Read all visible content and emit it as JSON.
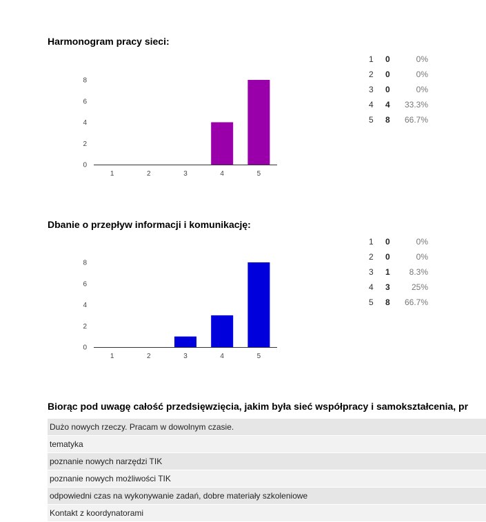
{
  "questions": [
    {
      "title": "Harmonogram pracy sieci:",
      "color": "#9900aa",
      "stats": [
        {
          "label": "1",
          "count": "0",
          "pct": "0%"
        },
        {
          "label": "2",
          "count": "0",
          "pct": "0%"
        },
        {
          "label": "3",
          "count": "0",
          "pct": "0%"
        },
        {
          "label": "4",
          "count": "4",
          "pct": "33.3%"
        },
        {
          "label": "5",
          "count": "8",
          "pct": "66.7%"
        }
      ]
    },
    {
      "title": "Dbanie o przepływ informacji i komunikację:",
      "color": "#0000dd",
      "stats": [
        {
          "label": "1",
          "count": "0",
          "pct": "0%"
        },
        {
          "label": "2",
          "count": "0",
          "pct": "0%"
        },
        {
          "label": "3",
          "count": "1",
          "pct": "8.3%"
        },
        {
          "label": "4",
          "count": "3",
          "pct": "25%"
        },
        {
          "label": "5",
          "count": "8",
          "pct": "66.7%"
        }
      ]
    }
  ],
  "chart_data": [
    {
      "type": "bar",
      "title": "Harmonogram pracy sieci:",
      "categories": [
        "1",
        "2",
        "3",
        "4",
        "5"
      ],
      "values": [
        0,
        0,
        0,
        4,
        8
      ],
      "yticks": [
        "0",
        "2",
        "4",
        "6",
        "8"
      ],
      "ylim": [
        0,
        8
      ],
      "color": "#9900aa"
    },
    {
      "type": "bar",
      "title": "Dbanie o przepływ informacji i komunikację:",
      "categories": [
        "1",
        "2",
        "3",
        "4",
        "5"
      ],
      "values": [
        0,
        0,
        1,
        3,
        8
      ],
      "yticks": [
        "0",
        "2",
        "4",
        "6",
        "8"
      ],
      "ylim": [
        0,
        8
      ],
      "color": "#0000dd"
    }
  ],
  "open_question": {
    "title": "Biorąc pod uwagę całość przedsięwzięcia, jakim była sieć współpracy i samokształcenia, pr",
    "answers": [
      "Dużo nowych rzeczy. Pracam w dowolnym czasie.",
      "tematyka",
      "poznanie nowych narzędzi TIK",
      "poznanie nowych możliwości TIK",
      "odpowiedni czas na wykonywanie zadań, dobre materiały szkoleniowe",
      "Kontakt z koordynatorami"
    ]
  }
}
